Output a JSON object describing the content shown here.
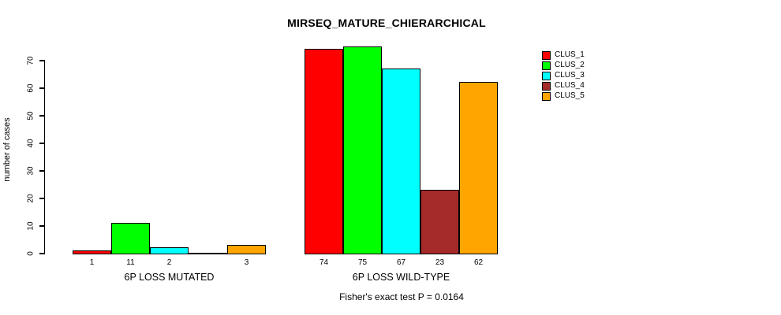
{
  "chart_data": {
    "type": "bar",
    "title": "MIRSEQ_MATURE_CHIERARCHICAL",
    "ylabel": "number of cases",
    "xlabel": "",
    "ylim": [
      0,
      70
    ],
    "yticks": [
      0,
      10,
      20,
      30,
      40,
      50,
      60,
      70
    ],
    "grid": false,
    "legend_position": "top-right",
    "categories": [
      "6P LOSS MUTATED",
      "6P LOSS WILD-TYPE"
    ],
    "series": [
      {
        "name": "CLUS_1",
        "color": "#FF0000",
        "values": [
          1,
          74
        ]
      },
      {
        "name": "CLUS_2",
        "color": "#00FF00",
        "values": [
          11,
          75
        ]
      },
      {
        "name": "CLUS_3",
        "color": "#00FFFF",
        "values": [
          2,
          67
        ]
      },
      {
        "name": "CLUS_4",
        "color": "#A52A2A",
        "values": [
          0,
          23
        ]
      },
      {
        "name": "CLUS_5",
        "color": "#FFA500",
        "values": [
          3,
          62
        ]
      }
    ],
    "bar_value_labels": [
      [
        "1",
        "11",
        "2",
        "",
        "3"
      ],
      [
        "74",
        "75",
        "67",
        "23",
        "62"
      ]
    ],
    "footnote": "Fisher's exact test P = 0.0164",
    "axis_color": "#000000",
    "bar_border_color": "#000000"
  }
}
